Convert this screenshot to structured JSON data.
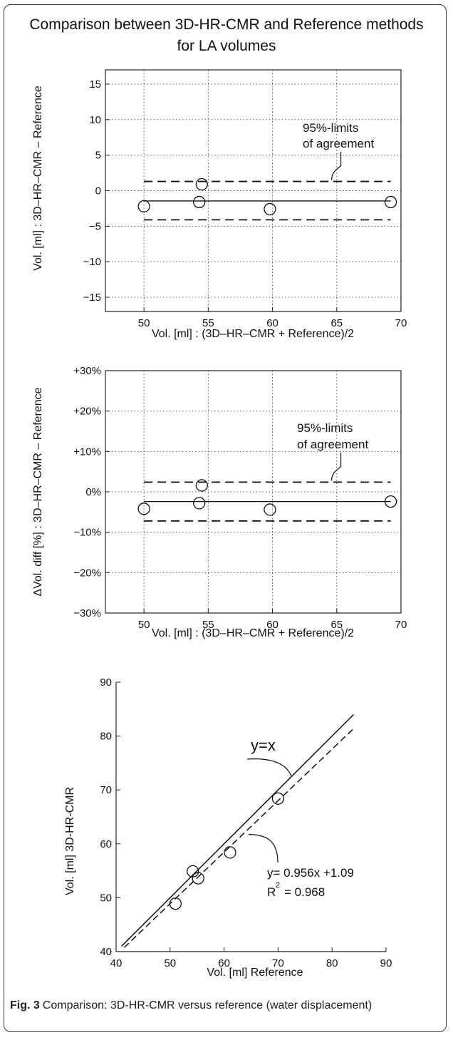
{
  "title_lines": [
    "Comparison between 3D-HR-CMR and Reference methods",
    "for LA volumes"
  ],
  "caption": {
    "label": "Fig. 3",
    "text": "Comparison: 3D-HR-CMR versus reference (water displacement)"
  },
  "chart_data": [
    {
      "type": "scatter",
      "xlabel": "Vol. [ml] : (3D–HR–CMR + Reference)/2",
      "ylabel": "Vol. [ml] : 3D–HR–CMR – Reference",
      "xlim": [
        47,
        70
      ],
      "ylim": [
        -17,
        17
      ],
      "x_ticks": [
        50,
        55,
        60,
        65,
        70
      ],
      "x_tick_labels": [
        "50",
        "55",
        "60",
        "65",
        "70"
      ],
      "y_ticks": [
        15,
        10,
        5,
        0,
        -5,
        -10,
        -15
      ],
      "y_tick_labels": [
        "15",
        "10",
        "5",
        "0",
        "−5",
        "−10",
        "−15"
      ],
      "grid": "dotted",
      "points": [
        {
          "x": 50.0,
          "y": -2.2
        },
        {
          "x": 54.5,
          "y": 0.9
        },
        {
          "x": 54.3,
          "y": -1.6
        },
        {
          "x": 59.8,
          "y": -2.6
        },
        {
          "x": 69.2,
          "y": -1.6
        }
      ],
      "mean_line": {
        "x": [
          50,
          69.2
        ],
        "y": -1.45
      },
      "limits_of_agreement": {
        "upper": 1.3,
        "lower": -4.1,
        "x": [
          50,
          69.2
        ]
      },
      "annotation": {
        "lines": [
          "95%-limits",
          "of agreement"
        ]
      }
    },
    {
      "type": "scatter",
      "xlabel": "Vol. [ml] : (3D–HR–CMR + Reference)/2",
      "ylabel": "ΔVol. diff [%] : 3D–HR–CMR – Reference",
      "xlim": [
        47,
        70
      ],
      "ylim": [
        -30,
        30
      ],
      "x_ticks": [
        50,
        55,
        60,
        65,
        70
      ],
      "x_tick_labels": [
        "50",
        "55",
        "60",
        "65",
        "70"
      ],
      "y_ticks": [
        30,
        20,
        10,
        0,
        -10,
        -20,
        -30
      ],
      "y_tick_labels": [
        "+30%",
        "+20%",
        "+10%",
        "0%",
        "−10%",
        "−20%",
        "−30%"
      ],
      "grid": "dotted",
      "points": [
        {
          "x": 50.0,
          "y": -4.2
        },
        {
          "x": 54.5,
          "y": 1.6
        },
        {
          "x": 54.3,
          "y": -2.8
        },
        {
          "x": 59.8,
          "y": -4.4
        },
        {
          "x": 69.2,
          "y": -2.4
        }
      ],
      "mean_line": {
        "x": [
          50,
          69.2
        ],
        "y": -2.4
      },
      "limits_of_agreement": {
        "upper": 2.4,
        "lower": -7.2,
        "x": [
          50,
          69.2
        ]
      },
      "annotation": {
        "lines": [
          "95%-limits",
          "of agreement"
        ]
      }
    },
    {
      "type": "scatter",
      "xlabel": "Vol. [ml] Reference",
      "ylabel": "Vol. [ml] 3D-HR-CMR",
      "xlim": [
        40,
        90
      ],
      "ylim": [
        40,
        90
      ],
      "x_ticks": [
        40,
        50,
        60,
        70,
        80,
        90
      ],
      "x_tick_labels": [
        "40",
        "50",
        "60",
        "70",
        "80",
        "90"
      ],
      "y_ticks": [
        40,
        50,
        60,
        70,
        80,
        90
      ],
      "y_tick_labels": [
        "40",
        "50",
        "60",
        "70",
        "80",
        "90"
      ],
      "grid": "none",
      "points": [
        {
          "x": 51.0,
          "y": 48.9
        },
        {
          "x": 54.2,
          "y": 54.9
        },
        {
          "x": 55.2,
          "y": 53.6
        },
        {
          "x": 61.1,
          "y": 58.4
        },
        {
          "x": 70.0,
          "y": 68.4
        }
      ],
      "identity_line": {
        "x": [
          41,
          84
        ]
      },
      "regression_line": {
        "slope": 0.956,
        "intercept": 1.09,
        "x": [
          41.5,
          84
        ]
      },
      "annotations": {
        "identity": "y=x",
        "regression": "y=  0.956x  +1.09",
        "r_squared_prefix": "R",
        "r_squared_exp": "2",
        "r_squared_value": "= 0.968"
      }
    }
  ]
}
